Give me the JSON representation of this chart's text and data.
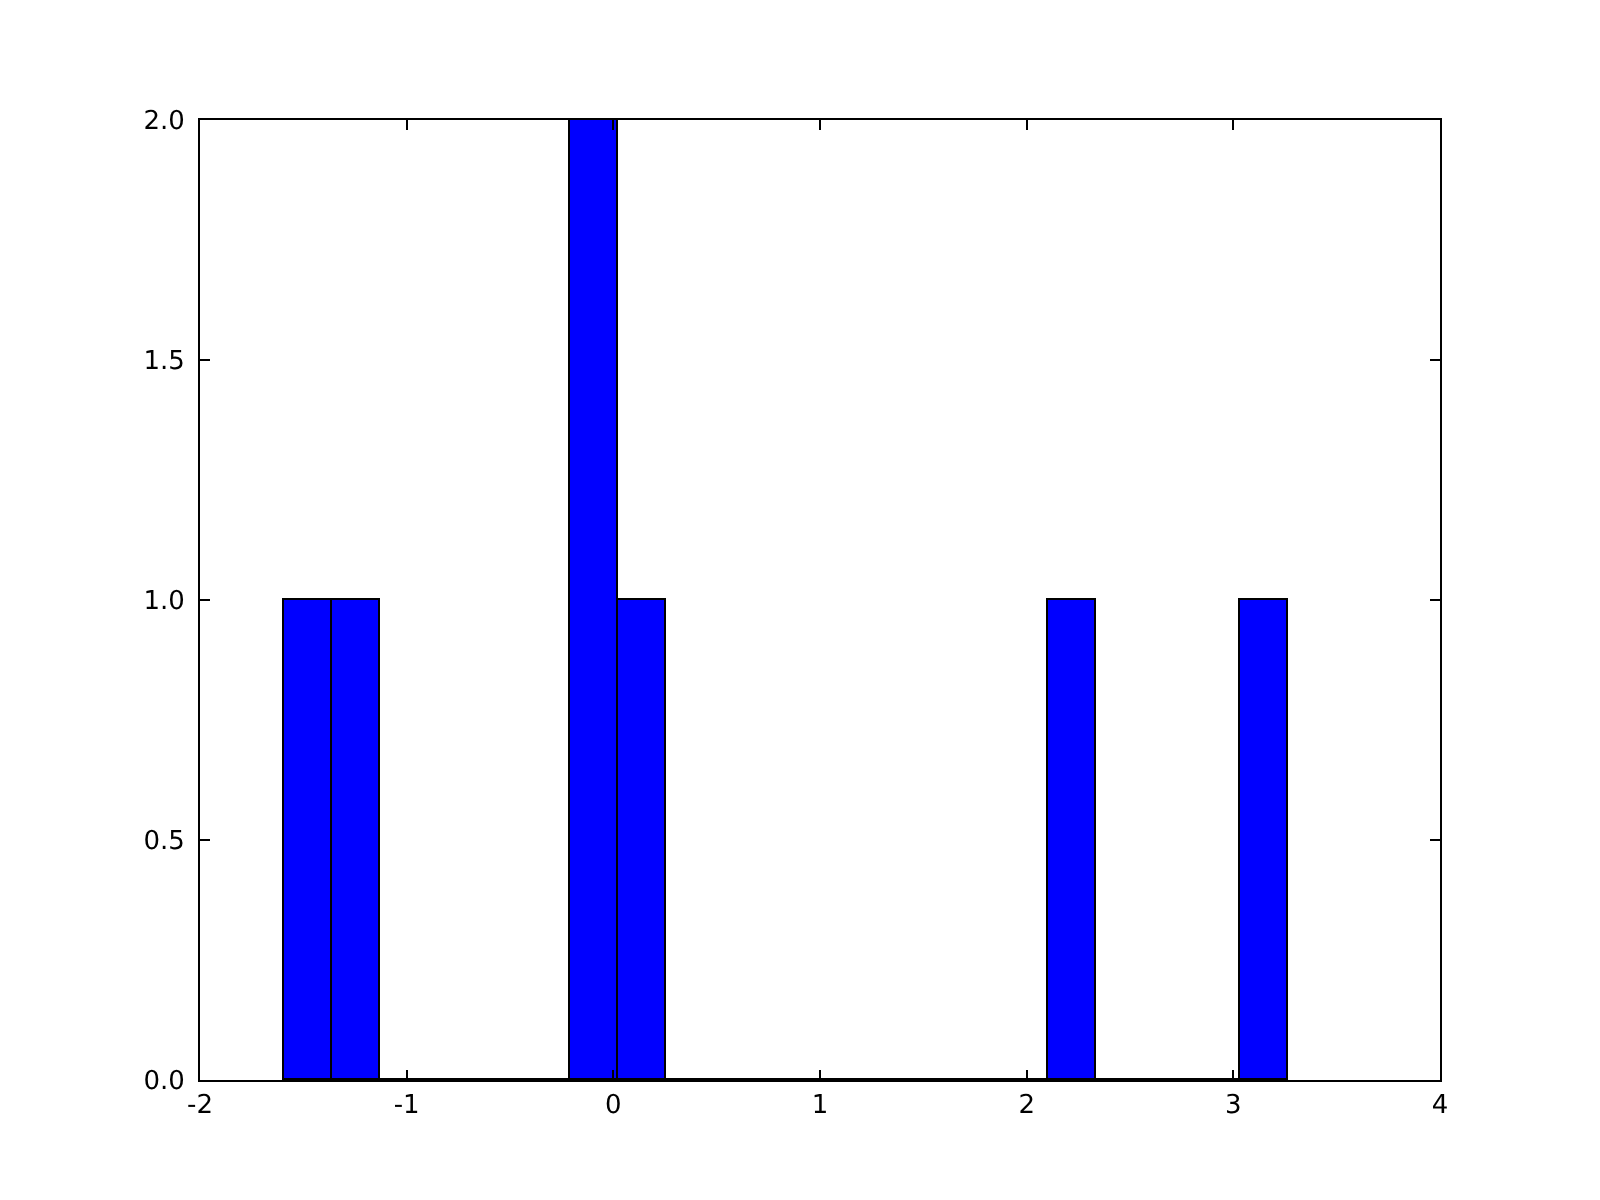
{
  "chart_data": {
    "type": "histogram",
    "bins": [
      -1.594,
      -1.363,
      -1.131,
      -0.9,
      -0.669,
      -0.438,
      -0.206,
      0.025,
      0.256,
      0.488,
      0.719,
      0.95,
      1.182,
      1.413,
      1.644,
      1.876,
      2.107,
      2.338,
      2.57,
      2.801,
      3.032,
      3.263
    ],
    "values": [
      1,
      1,
      0,
      0,
      0,
      0,
      2,
      1,
      0,
      0,
      0,
      0,
      0,
      0,
      0,
      0,
      1,
      0,
      0,
      0,
      1
    ],
    "color": "#0000ff",
    "xlim": [
      -2,
      4
    ],
    "xticks": [
      -2,
      -1,
      0,
      1,
      2,
      3,
      4
    ],
    "ylim": [
      0,
      2
    ],
    "yticks": [
      {
        "value": 0,
        "label": "0.0"
      },
      {
        "value": 0.5,
        "label": "0.5"
      },
      {
        "value": 1,
        "label": "1.0"
      },
      {
        "value": 1.5,
        "label": "1.5"
      },
      {
        "value": 2,
        "label": "2.0"
      }
    ],
    "tick_labels": "xy"
  }
}
